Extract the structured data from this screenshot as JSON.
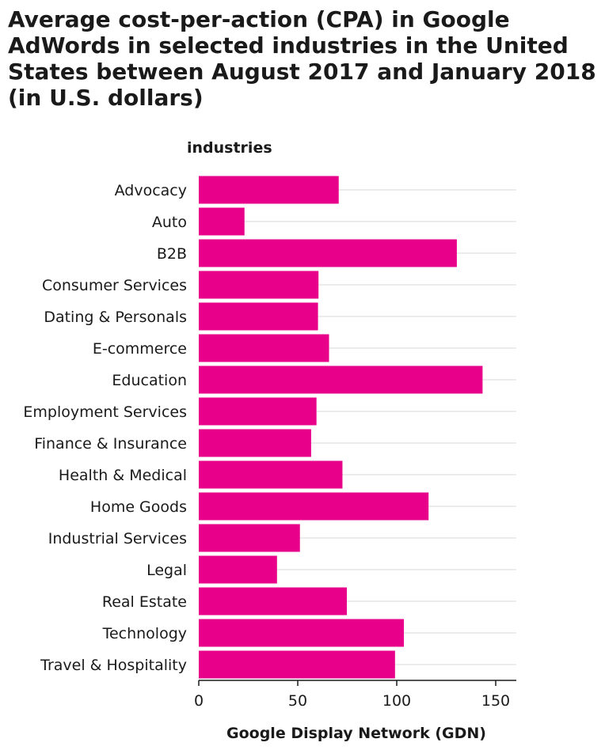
{
  "chart_data": {
    "type": "bar",
    "orientation": "horizontal",
    "title": "Average cost-per-action (CPA) in Google AdWords in selected industries in the United States between August 2017 and January 2018 (in U.S. dollars)",
    "ylabel": "industries",
    "xlabel": "Google Display Network (GDN)",
    "categories": [
      "Advocacy",
      "Auto",
      "B2B",
      "Consumer Services",
      "Dating & Personals",
      "E-commerce",
      "Education",
      "Employment Services",
      "Finance & Insurance",
      "Health & Medical",
      "Home Goods",
      "Industrial Services",
      "Legal",
      "Real Estate",
      "Technology",
      "Travel & Hospitality"
    ],
    "values": [
      70.69,
      23.1,
      130.36,
      60.48,
      60.23,
      65.8,
      143.36,
      59.47,
      56.76,
      72.58,
      116.08,
      51.1,
      39.52,
      74.79,
      103.6,
      99.13
    ],
    "xlim": [
      0,
      160
    ],
    "xticks": [
      0,
      50,
      100,
      150
    ],
    "grid": true,
    "bar_color": "#e8008a"
  }
}
